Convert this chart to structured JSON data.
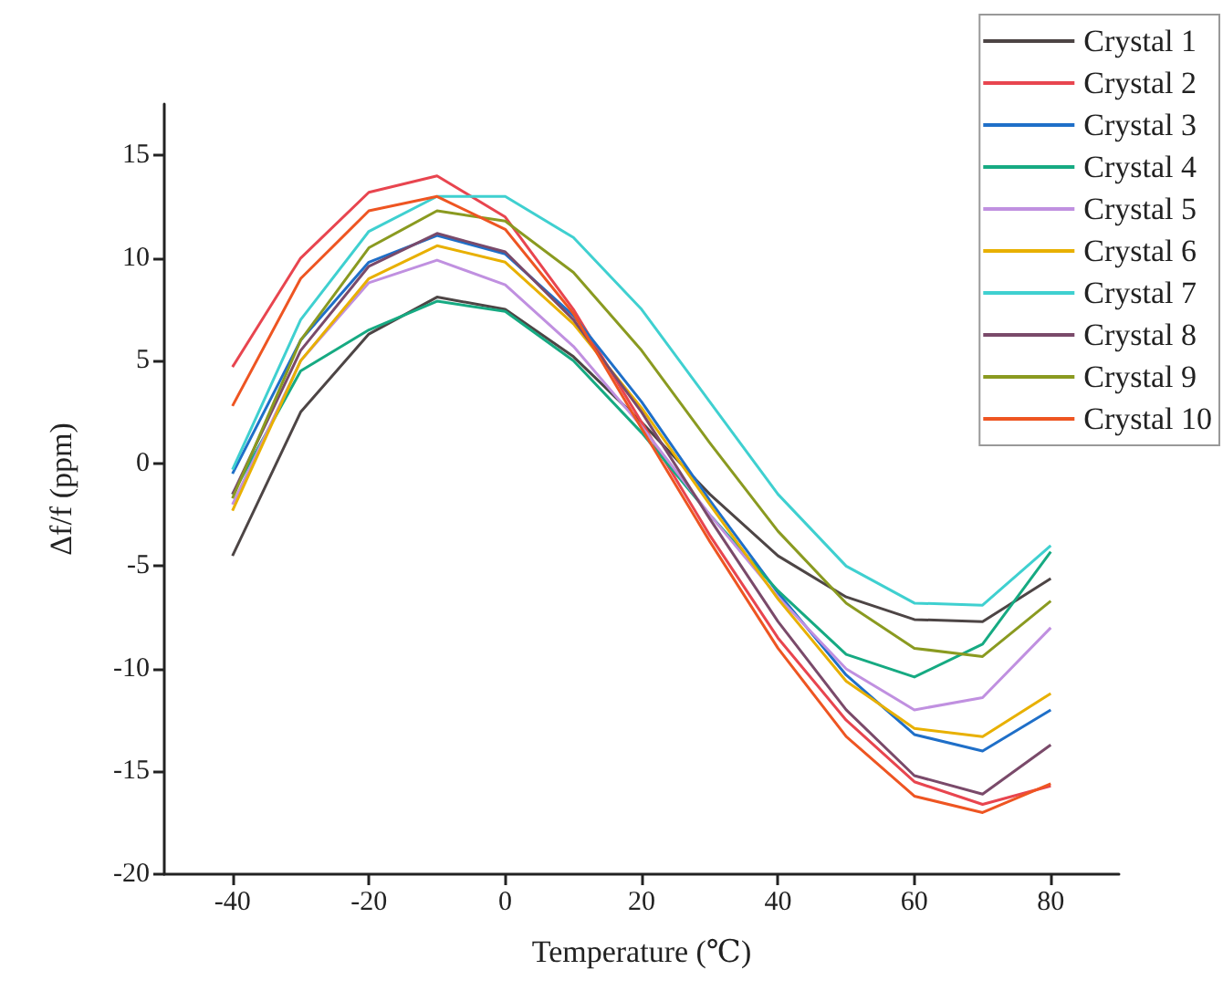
{
  "chart_data": {
    "type": "line",
    "xlabel": "Temperature (℃)",
    "ylabel": "Δf/f (ppm)",
    "x": [
      -40,
      -30,
      -20,
      -10,
      0,
      10,
      20,
      30,
      40,
      50,
      60,
      70,
      80
    ],
    "xlim": [
      -50,
      90
    ],
    "xticks": [
      -40,
      -20,
      0,
      20,
      40,
      60,
      80
    ],
    "ylim": [
      -20,
      17.5
    ],
    "yticks": [
      -20,
      -15,
      -10,
      -5,
      0,
      5,
      10,
      15
    ],
    "grid": false,
    "legend": "top right",
    "series": [
      {
        "name": "Crystal 1",
        "color": "#4d4545",
        "values": [
          -4.5,
          2.5,
          6.3,
          8.1,
          7.5,
          5.2,
          2.0,
          -1.5,
          -4.5,
          -6.5,
          -7.6,
          -7.7,
          -5.6
        ]
      },
      {
        "name": "Crystal 2",
        "color": "#e8454f",
        "values": [
          4.7,
          10.0,
          13.2,
          14.0,
          12.0,
          7.5,
          2.0,
          -3.5,
          -8.5,
          -12.5,
          -15.5,
          -16.6,
          -15.7
        ]
      },
      {
        "name": "Crystal 3",
        "color": "#1f6fc8",
        "values": [
          -0.5,
          6.0,
          9.8,
          11.1,
          10.2,
          7.2,
          3.0,
          -1.8,
          -6.3,
          -10.3,
          -13.2,
          -14.0,
          -12.0
        ]
      },
      {
        "name": "Crystal 4",
        "color": "#16aa82",
        "values": [
          -1.5,
          4.5,
          6.5,
          7.9,
          7.4,
          5.0,
          1.5,
          -2.5,
          -6.2,
          -9.3,
          -10.4,
          -8.8,
          -4.3
        ]
      },
      {
        "name": "Crystal 5",
        "color": "#c090e0",
        "values": [
          -2.0,
          5.0,
          8.8,
          9.9,
          8.7,
          5.7,
          1.8,
          -2.5,
          -6.5,
          -10.0,
          -12.0,
          -11.4,
          -8.0
        ]
      },
      {
        "name": "Crystal 6",
        "color": "#e8b000",
        "values": [
          -2.3,
          5.0,
          9.0,
          10.6,
          9.8,
          6.8,
          2.7,
          -2.0,
          -6.6,
          -10.6,
          -12.9,
          -13.3,
          -11.2
        ]
      },
      {
        "name": "Crystal 7",
        "color": "#3fd0d0",
        "values": [
          -0.3,
          7.0,
          11.3,
          13.0,
          13.0,
          11.0,
          7.5,
          3.0,
          -1.5,
          -5.0,
          -6.8,
          -6.9,
          -4.0
        ]
      },
      {
        "name": "Crystal 8",
        "color": "#7a4a6a",
        "values": [
          -1.5,
          5.5,
          9.6,
          11.2,
          10.3,
          7.0,
          2.5,
          -2.7,
          -7.7,
          -12.0,
          -15.2,
          -16.1,
          -13.7
        ]
      },
      {
        "name": "Crystal 9",
        "color": "#8a9a20",
        "values": [
          -1.7,
          6.0,
          10.5,
          12.3,
          11.8,
          9.3,
          5.5,
          1.0,
          -3.3,
          -6.8,
          -9.0,
          -9.4,
          -6.7
        ]
      },
      {
        "name": "Crystal 10",
        "color": "#ee5522",
        "values": [
          2.8,
          9.0,
          12.3,
          13.0,
          11.4,
          7.3,
          1.7,
          -3.8,
          -9.0,
          -13.3,
          -16.2,
          -17.0,
          -15.6
        ]
      }
    ]
  }
}
